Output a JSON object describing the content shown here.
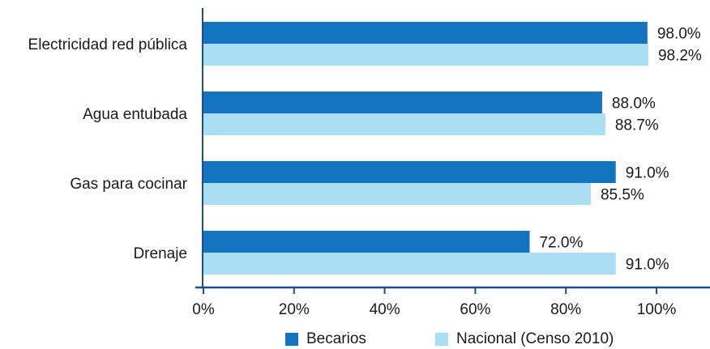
{
  "chart_data": {
    "type": "bar",
    "orientation": "horizontal",
    "categories": [
      "Electricidad red pública",
      "Agua entubada",
      "Gas para cocinar",
      "Drenaje"
    ],
    "series": [
      {
        "name": "Becarios",
        "values": [
          98.0,
          88.0,
          91.0,
          72.0
        ],
        "labels": [
          "98.0%",
          "88.0%",
          "91.0%",
          "72.0%"
        ],
        "color": "#1273bf"
      },
      {
        "name": "Nacional (Censo 2010)",
        "values": [
          98.2,
          88.7,
          85.5,
          91.0
        ],
        "labels": [
          "98.2%",
          "88.7%",
          "85.5%",
          "91.0%"
        ],
        "color": "#a9def3"
      }
    ],
    "xlim": [
      0,
      100
    ],
    "xticks": [
      0,
      20,
      40,
      60,
      80,
      100
    ],
    "xtick_labels": [
      "0%",
      "20%",
      "40%",
      "60%",
      "80%",
      "100%"
    ],
    "axis_color": "#1f4e8c",
    "grid": false,
    "legend_position": "bottom"
  }
}
